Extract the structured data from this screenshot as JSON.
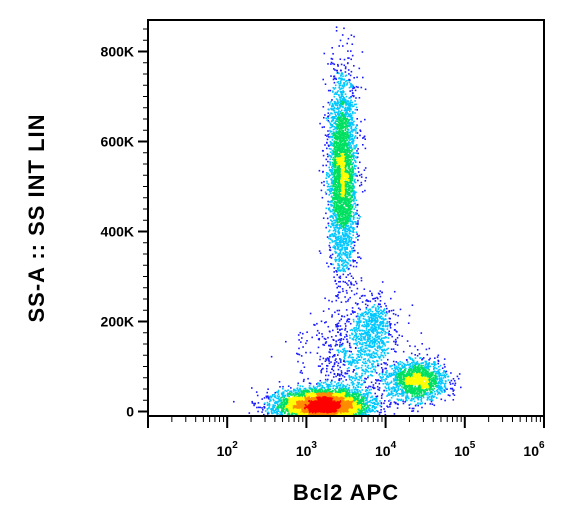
{
  "chart_data": {
    "type": "scatter",
    "subtype": "flow-cytometry-density-dot-plot",
    "xlabel": "Bcl2 APC",
    "ylabel": "SS-A :: SS INT LIN",
    "x_scale": "log",
    "y_scale": "linear",
    "xlim": [
      10,
      1000000
    ],
    "ylim": [
      -10000,
      870000
    ],
    "x_ticks": [
      {
        "base": "10",
        "exp": "2",
        "value": 100
      },
      {
        "base": "10",
        "exp": "3",
        "value": 1000
      },
      {
        "base": "10",
        "exp": "4",
        "value": 10000
      },
      {
        "base": "10",
        "exp": "5",
        "value": 100000
      },
      {
        "base": "10",
        "exp": "6",
        "value": 1000000
      }
    ],
    "y_ticks": [
      {
        "label": "0",
        "value": 0
      },
      {
        "label": "200K",
        "value": 200000
      },
      {
        "label": "400K",
        "value": 400000
      },
      {
        "label": "600K",
        "value": 600000
      },
      {
        "label": "800K",
        "value": 800000
      }
    ],
    "color_scale": [
      "#1a1aff",
      "#00c8ff",
      "#00e060",
      "#ffff00",
      "#ff8c00",
      "#ff0000"
    ],
    "populations": [
      {
        "center_x": 1600,
        "center_y": 15000,
        "spread_logx": 0.28,
        "spread_y": 18000,
        "points": 5200
      },
      {
        "center_x": 2800,
        "center_y": 530000,
        "spread_logx": 0.09,
        "spread_y": 110000,
        "points": 3200
      },
      {
        "center_x": 25000,
        "center_y": 70000,
        "spread_logx": 0.18,
        "spread_y": 22000,
        "points": 1500
      },
      {
        "center_x": 7000,
        "center_y": 190000,
        "spread_logx": 0.12,
        "spread_y": 35000,
        "points": 500
      },
      {
        "center_x": 4000,
        "center_y": 120000,
        "spread_logx": 0.3,
        "spread_y": 50000,
        "points": 700
      }
    ],
    "grid": false,
    "legend": "none"
  }
}
